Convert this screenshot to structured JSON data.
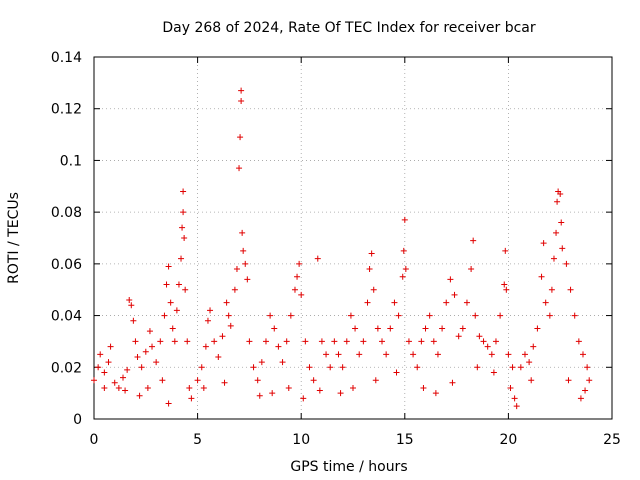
{
  "chart_data": {
    "type": "scatter",
    "title": "Day 268 of 2024, Rate Of TEC Index for receiver bcar",
    "xlabel": "GPS time / hours",
    "ylabel": "ROTI / TECUs",
    "xlim": [
      0,
      25
    ],
    "ylim": [
      0,
      0.14
    ],
    "xticks": [
      "0",
      "5",
      "10",
      "15",
      "20",
      "25"
    ],
    "yticks": [
      "0",
      "0.02",
      "0.04",
      "0.06",
      "0.08",
      "0.1",
      "0.12",
      "0.14"
    ],
    "grid": true,
    "marker": "+",
    "series": [
      {
        "name": "ROTI",
        "color": "#e00000",
        "points": [
          [
            0.0,
            0.015
          ],
          [
            0.2,
            0.02
          ],
          [
            0.3,
            0.025
          ],
          [
            0.5,
            0.018
          ],
          [
            0.7,
            0.022
          ],
          [
            0.8,
            0.028
          ],
          [
            1.0,
            0.014
          ],
          [
            1.2,
            0.012
          ],
          [
            1.4,
            0.016
          ],
          [
            1.5,
            0.011
          ],
          [
            1.6,
            0.019
          ],
          [
            1.7,
            0.046
          ],
          [
            1.8,
            0.044
          ],
          [
            1.9,
            0.038
          ],
          [
            2.0,
            0.03
          ],
          [
            2.1,
            0.024
          ],
          [
            2.3,
            0.02
          ],
          [
            2.5,
            0.026
          ],
          [
            2.7,
            0.034
          ],
          [
            2.8,
            0.028
          ],
          [
            3.0,
            0.022
          ],
          [
            3.2,
            0.03
          ],
          [
            3.4,
            0.04
          ],
          [
            3.5,
            0.052
          ],
          [
            3.6,
            0.059
          ],
          [
            3.7,
            0.045
          ],
          [
            3.8,
            0.035
          ],
          [
            3.9,
            0.03
          ],
          [
            4.0,
            0.042
          ],
          [
            4.1,
            0.052
          ],
          [
            4.2,
            0.062
          ],
          [
            4.25,
            0.074
          ],
          [
            4.3,
            0.08
          ],
          [
            4.3,
            0.088
          ],
          [
            4.35,
            0.07
          ],
          [
            4.4,
            0.05
          ],
          [
            4.5,
            0.03
          ],
          [
            4.6,
            0.012
          ],
          [
            4.7,
            0.008
          ],
          [
            3.6,
            0.006
          ],
          [
            5.0,
            0.015
          ],
          [
            5.2,
            0.02
          ],
          [
            5.4,
            0.028
          ],
          [
            5.5,
            0.038
          ],
          [
            5.6,
            0.042
          ],
          [
            5.8,
            0.03
          ],
          [
            6.0,
            0.024
          ],
          [
            6.2,
            0.032
          ],
          [
            6.4,
            0.045
          ],
          [
            6.5,
            0.04
          ],
          [
            6.6,
            0.036
          ],
          [
            6.8,
            0.05
          ],
          [
            6.9,
            0.058
          ],
          [
            7.0,
            0.097
          ],
          [
            7.05,
            0.109
          ],
          [
            7.1,
            0.123
          ],
          [
            7.1,
            0.127
          ],
          [
            7.15,
            0.072
          ],
          [
            7.2,
            0.065
          ],
          [
            7.3,
            0.06
          ],
          [
            7.4,
            0.054
          ],
          [
            7.5,
            0.03
          ],
          [
            7.7,
            0.02
          ],
          [
            7.9,
            0.015
          ],
          [
            8.1,
            0.022
          ],
          [
            8.3,
            0.03
          ],
          [
            8.5,
            0.04
          ],
          [
            8.7,
            0.035
          ],
          [
            8.9,
            0.028
          ],
          [
            9.1,
            0.022
          ],
          [
            9.3,
            0.03
          ],
          [
            9.5,
            0.04
          ],
          [
            9.7,
            0.05
          ],
          [
            9.8,
            0.055
          ],
          [
            9.9,
            0.06
          ],
          [
            10.0,
            0.048
          ],
          [
            10.2,
            0.03
          ],
          [
            10.4,
            0.02
          ],
          [
            10.6,
            0.015
          ],
          [
            10.8,
            0.062
          ],
          [
            11.0,
            0.03
          ],
          [
            11.2,
            0.025
          ],
          [
            11.4,
            0.02
          ],
          [
            11.6,
            0.03
          ],
          [
            11.8,
            0.025
          ],
          [
            12.0,
            0.02
          ],
          [
            12.2,
            0.03
          ],
          [
            12.4,
            0.04
          ],
          [
            12.6,
            0.035
          ],
          [
            12.8,
            0.025
          ],
          [
            13.0,
            0.03
          ],
          [
            13.2,
            0.045
          ],
          [
            13.3,
            0.058
          ],
          [
            13.4,
            0.064
          ],
          [
            13.5,
            0.05
          ],
          [
            13.7,
            0.035
          ],
          [
            13.9,
            0.03
          ],
          [
            14.1,
            0.025
          ],
          [
            14.3,
            0.035
          ],
          [
            14.5,
            0.045
          ],
          [
            14.7,
            0.04
          ],
          [
            14.9,
            0.055
          ],
          [
            14.95,
            0.065
          ],
          [
            15.0,
            0.077
          ],
          [
            15.05,
            0.058
          ],
          [
            15.2,
            0.03
          ],
          [
            15.4,
            0.025
          ],
          [
            15.6,
            0.02
          ],
          [
            15.8,
            0.03
          ],
          [
            16.0,
            0.035
          ],
          [
            16.2,
            0.04
          ],
          [
            16.4,
            0.03
          ],
          [
            16.6,
            0.025
          ],
          [
            16.8,
            0.035
          ],
          [
            17.0,
            0.045
          ],
          [
            17.2,
            0.054
          ],
          [
            17.4,
            0.048
          ],
          [
            17.6,
            0.032
          ],
          [
            17.8,
            0.035
          ],
          [
            18.0,
            0.045
          ],
          [
            18.2,
            0.058
          ],
          [
            18.3,
            0.069
          ],
          [
            18.4,
            0.04
          ],
          [
            18.6,
            0.032
          ],
          [
            18.8,
            0.03
          ],
          [
            19.0,
            0.028
          ],
          [
            19.2,
            0.025
          ],
          [
            19.4,
            0.03
          ],
          [
            19.6,
            0.04
          ],
          [
            19.8,
            0.052
          ],
          [
            19.85,
            0.065
          ],
          [
            19.9,
            0.05
          ],
          [
            20.0,
            0.025
          ],
          [
            20.2,
            0.02
          ],
          [
            20.3,
            0.008
          ],
          [
            20.4,
            0.005
          ],
          [
            20.6,
            0.02
          ],
          [
            20.8,
            0.025
          ],
          [
            21.0,
            0.022
          ],
          [
            21.2,
            0.028
          ],
          [
            21.4,
            0.035
          ],
          [
            21.6,
            0.055
          ],
          [
            21.7,
            0.068
          ],
          [
            21.8,
            0.045
          ],
          [
            22.0,
            0.04
          ],
          [
            22.1,
            0.05
          ],
          [
            22.2,
            0.062
          ],
          [
            22.3,
            0.072
          ],
          [
            22.35,
            0.084
          ],
          [
            22.4,
            0.088
          ],
          [
            22.5,
            0.087
          ],
          [
            22.55,
            0.076
          ],
          [
            22.6,
            0.066
          ],
          [
            22.8,
            0.06
          ],
          [
            23.0,
            0.05
          ],
          [
            23.2,
            0.04
          ],
          [
            23.4,
            0.03
          ],
          [
            23.6,
            0.025
          ],
          [
            23.8,
            0.02
          ],
          [
            23.9,
            0.015
          ],
          [
            0.5,
            0.012
          ],
          [
            2.2,
            0.009
          ],
          [
            2.6,
            0.012
          ],
          [
            3.3,
            0.015
          ],
          [
            5.3,
            0.012
          ],
          [
            6.3,
            0.014
          ],
          [
            8.0,
            0.009
          ],
          [
            8.6,
            0.01
          ],
          [
            9.4,
            0.012
          ],
          [
            10.1,
            0.008
          ],
          [
            10.9,
            0.011
          ],
          [
            11.9,
            0.01
          ],
          [
            12.5,
            0.012
          ],
          [
            13.6,
            0.015
          ],
          [
            14.6,
            0.018
          ],
          [
            15.9,
            0.012
          ],
          [
            16.5,
            0.01
          ],
          [
            17.3,
            0.014
          ],
          [
            18.5,
            0.02
          ],
          [
            19.3,
            0.018
          ],
          [
            20.1,
            0.012
          ],
          [
            21.1,
            0.015
          ],
          [
            22.9,
            0.015
          ],
          [
            23.5,
            0.008
          ],
          [
            23.7,
            0.011
          ]
        ]
      }
    ]
  }
}
